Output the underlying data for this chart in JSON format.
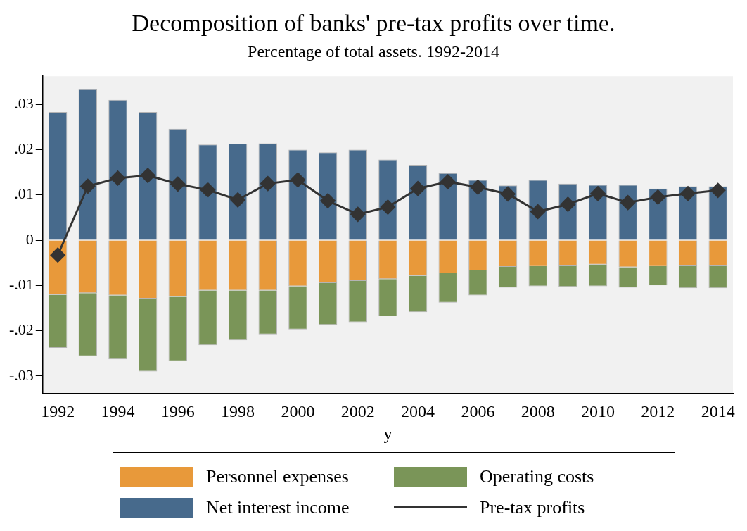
{
  "chart_data": {
    "type": "bar",
    "title": "Decomposition of banks' pre-tax profits over time.",
    "subtitle": "Percentage of total assets. 1992-2014",
    "xlabel": "y",
    "categories": [
      "1992",
      null,
      "1994",
      null,
      "1996",
      null,
      "1998",
      null,
      "2000",
      null,
      "2002",
      null,
      "2004",
      null,
      "2006",
      null,
      "2008",
      null,
      "2010",
      null,
      "2012",
      null,
      "2014"
    ],
    "stacked": true,
    "legend": "bottom",
    "marker": "diamond",
    "ylim": [
      -0.0338,
      0.0362
    ],
    "yticks": [
      {
        "value": -0.03,
        "label": "-.03"
      },
      {
        "value": -0.02,
        "label": "-.02"
      },
      {
        "value": -0.01,
        "label": "-.01"
      },
      0,
      {
        "value": 0.01,
        "label": ".01"
      },
      {
        "value": 0.02,
        "label": ".02"
      },
      {
        "value": 0.03,
        "label": ".03"
      }
    ],
    "series": [
      {
        "name": "Personnel expenses",
        "color": "#e8993a",
        "values": [
          -0.0121,
          -0.0117,
          -0.0122,
          -0.0129,
          -0.0125,
          -0.0111,
          -0.0111,
          -0.0111,
          -0.0102,
          -0.0095,
          -0.009,
          -0.0086,
          -0.0079,
          -0.0073,
          -0.0067,
          -0.0059,
          -0.0057,
          -0.0056,
          -0.0054,
          -0.006,
          -0.0057,
          -0.0056,
          -0.0056
        ]
      },
      {
        "name": "Operating costs",
        "color": "#7a9558",
        "values": [
          -0.0117,
          -0.0139,
          -0.0141,
          -0.0161,
          -0.0142,
          -0.0121,
          -0.011,
          -0.0097,
          -0.0095,
          -0.0092,
          -0.0091,
          -0.0082,
          -0.008,
          -0.0065,
          -0.0055,
          -0.0046,
          -0.0045,
          -0.0047,
          -0.0048,
          -0.0045,
          -0.0043,
          -0.005,
          -0.005
        ]
      },
      {
        "name": "Net interest income",
        "color": "#476a8c",
        "values": [
          0.0283,
          0.0333,
          0.031,
          0.0283,
          0.0246,
          0.0211,
          0.0213,
          0.0214,
          0.02,
          0.0194,
          0.02,
          0.0178,
          0.0165,
          0.0148,
          0.0133,
          0.0121,
          0.0133,
          0.0125,
          0.0122,
          0.0122,
          0.0114,
          0.0119,
          0.0119
        ]
      },
      {
        "name": "Pre-tax profits",
        "type": "line",
        "color": "#333333",
        "values": [
          -0.0033,
          0.0119,
          0.0137,
          0.0143,
          0.0124,
          0.0111,
          0.0089,
          0.0125,
          0.0133,
          0.0087,
          0.0057,
          0.0073,
          0.0114,
          0.0129,
          0.0117,
          0.0102,
          0.0063,
          0.0079,
          0.0103,
          0.0083,
          0.0095,
          0.0103,
          0.011
        ]
      }
    ]
  }
}
